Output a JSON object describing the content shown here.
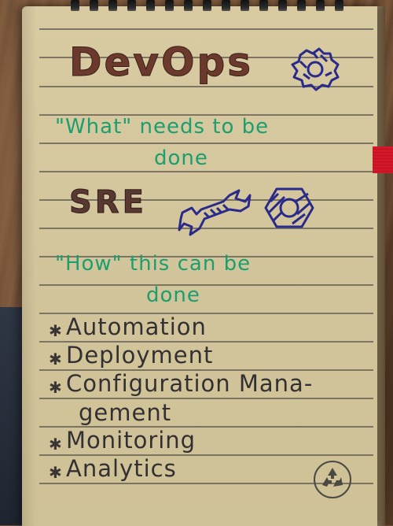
{
  "notebook": {
    "title": "DevOps",
    "what_line_1": "\"What\" needs to be",
    "what_line_2": "done",
    "subtitle": "SRE",
    "how_line_1": "\"How\" this can be",
    "how_line_2": "done",
    "bullet_symbol": "✱",
    "bullets": [
      "Automation",
      "Deployment",
      "Configuration Mana-",
      "Monitoring",
      "Analytics"
    ],
    "bullet_continuation": "gement"
  },
  "colors": {
    "title_ink": "#6b3a2c",
    "green_ink": "#1c9e6f",
    "blue_ink": "#2a2a8a",
    "black_ink": "#333033",
    "paper": "#d6c89e",
    "bookmark": "#d4182a"
  },
  "icons": [
    "gear-icon",
    "wrench-icon",
    "hex-nut-icon",
    "recycle-icon"
  ]
}
